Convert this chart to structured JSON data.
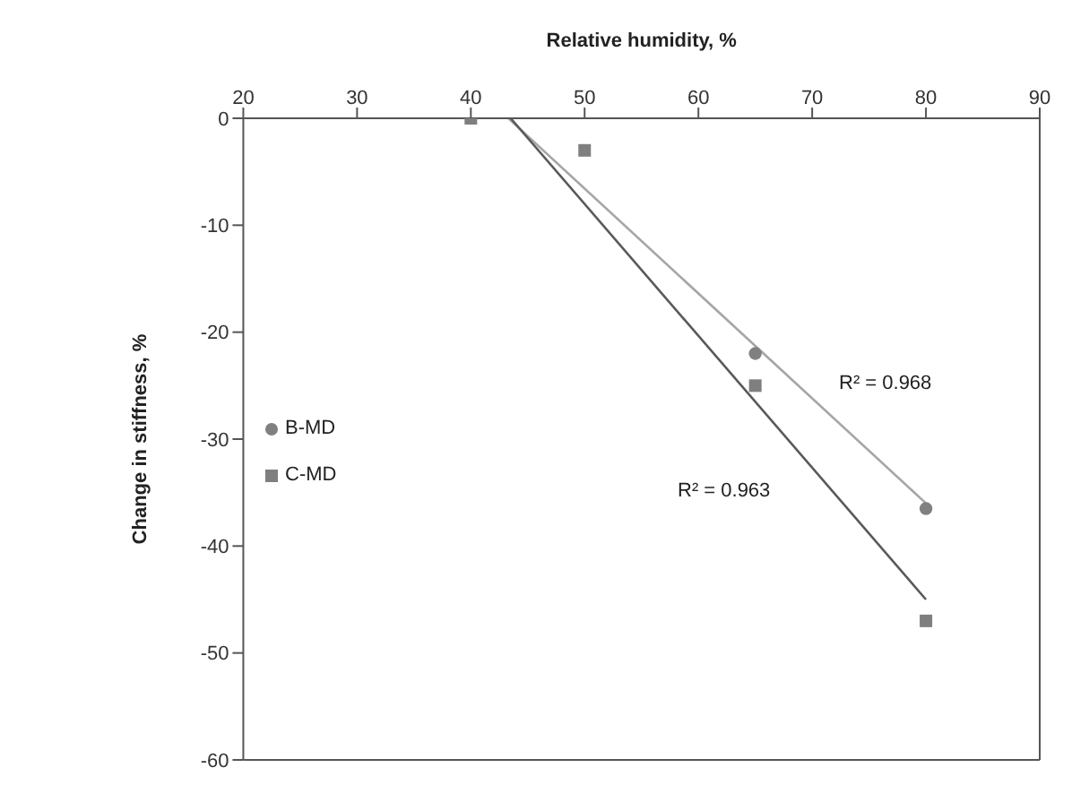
{
  "chart_data": {
    "type": "scatter",
    "xlabel": "Relative humidity, %",
    "ylabel": "Change in stiffness, %",
    "xlim": [
      20,
      90
    ],
    "xticks": [
      20,
      30,
      40,
      50,
      60,
      70,
      80,
      90
    ],
    "ylim": [
      -60,
      0
    ],
    "yticks": [
      -60,
      -50,
      -40,
      -30,
      -20,
      -10,
      0
    ],
    "grid": false,
    "legend": "left",
    "series": [
      {
        "name": "B-MD",
        "marker": "circle",
        "color": "#808080",
        "x": [
          65,
          80
        ],
        "values": [
          -22,
          -36.5
        ]
      },
      {
        "name": "C-MD",
        "marker": "square",
        "color": "#7f7f7f",
        "x": [
          40,
          50,
          65,
          80
        ],
        "values": [
          0,
          -3,
          -25,
          -47
        ]
      },
      {
        "type": "line",
        "marker": "none",
        "color": "#a6a6a6",
        "x": [
          43.3,
          80
        ],
        "values": [
          0,
          -36
        ]
      },
      {
        "type": "line",
        "marker": "none",
        "color": "#595959",
        "x": [
          43.5,
          80
        ],
        "values": [
          0,
          -45
        ]
      }
    ],
    "annotations": [
      "R² = 0.968",
      "R² = 0.963"
    ]
  }
}
